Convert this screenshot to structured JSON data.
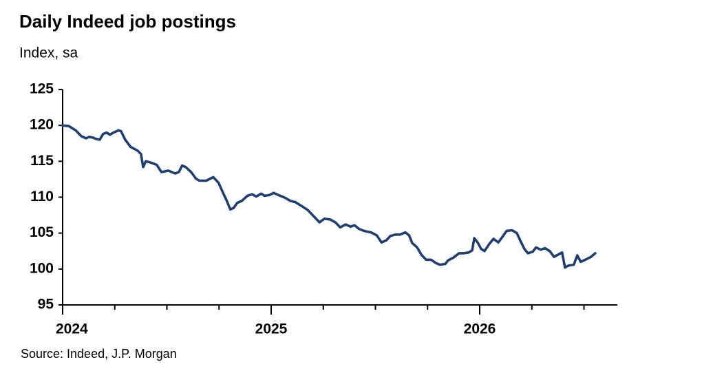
{
  "chart_data": {
    "type": "line",
    "title": "Daily Indeed job postings",
    "subtitle": "Index, sa",
    "source": "Source: Indeed, J.P. Morgan",
    "xlim": [
      2024,
      2026.66
    ],
    "xticks": [
      2024,
      2025,
      2026
    ],
    "xminorticks": [
      2024.25,
      2024.5,
      2024.75,
      2025.25,
      2025.5,
      2025.75,
      2026.25,
      2026.5
    ],
    "ylim": [
      95,
      125
    ],
    "yticks": [
      95,
      100,
      105,
      110,
      115,
      120,
      125
    ],
    "grid": false,
    "x": [
      2024.0,
      2024.03,
      2024.063,
      2024.089,
      2024.112,
      2024.128,
      2024.145,
      2024.161,
      2024.178,
      2024.194,
      2024.211,
      2024.227,
      2024.244,
      2024.267,
      2024.28,
      2024.3,
      2024.326,
      2024.359,
      2024.376,
      2024.386,
      2024.399,
      2024.425,
      2024.451,
      2024.474,
      2024.507,
      2024.54,
      2024.557,
      2024.573,
      2024.59,
      2024.616,
      2024.639,
      2024.656,
      2024.689,
      2024.722,
      2024.748,
      2024.771,
      2024.787,
      2024.804,
      2024.82,
      2024.837,
      2024.86,
      2024.886,
      2024.909,
      2024.929,
      2024.952,
      2024.969,
      2024.992,
      2025.012,
      2025.035,
      2025.068,
      2025.091,
      2025.117,
      2025.15,
      2025.176,
      2025.199,
      2025.232,
      2025.255,
      2025.282,
      2025.308,
      2025.331,
      2025.357,
      2025.381,
      2025.4,
      2025.42,
      2025.446,
      2025.479,
      2025.506,
      2025.529,
      2025.552,
      2025.572,
      2025.595,
      2025.618,
      2025.644,
      2025.661,
      2025.677,
      2025.7,
      2025.72,
      2025.743,
      2025.766,
      2025.792,
      2025.809,
      2025.835,
      2025.848,
      2025.875,
      2025.901,
      2025.924,
      2025.947,
      2025.964,
      2025.974,
      2025.99,
      2026.007,
      2026.023,
      2026.046,
      2026.066,
      2026.089,
      2026.112,
      2026.129,
      2026.155,
      2026.178,
      2026.194,
      2026.214,
      2026.231,
      2026.254,
      2026.27,
      2026.293,
      2026.313,
      2026.336,
      2026.356,
      2026.376,
      2026.395,
      2026.409,
      2026.428,
      2026.451,
      2026.468,
      2026.484,
      2026.507,
      2026.534,
      2026.554
    ],
    "series": [
      {
        "name": "Daily Indeed job postings",
        "color": "#1f3f73",
        "values": [
          120.0,
          119.9,
          119.3,
          118.5,
          118.2,
          118.4,
          118.3,
          118.1,
          118.0,
          118.8,
          119.0,
          118.7,
          119.0,
          119.3,
          119.2,
          118.0,
          117.0,
          116.5,
          116.0,
          114.2,
          115.0,
          114.8,
          114.5,
          113.5,
          113.7,
          113.3,
          113.5,
          114.4,
          114.2,
          113.5,
          112.6,
          112.3,
          112.3,
          112.8,
          112.0,
          110.5,
          109.5,
          108.3,
          108.5,
          109.2,
          109.5,
          110.2,
          110.4,
          110.1,
          110.5,
          110.2,
          110.3,
          110.6,
          110.3,
          109.9,
          109.5,
          109.3,
          108.7,
          108.2,
          107.5,
          106.5,
          107.0,
          106.9,
          106.5,
          105.8,
          106.2,
          105.9,
          106.1,
          105.6,
          105.3,
          105.1,
          104.7,
          103.7,
          104.0,
          104.6,
          104.8,
          104.8,
          105.1,
          104.7,
          103.6,
          103.0,
          102.0,
          101.3,
          101.3,
          100.8,
          100.6,
          100.7,
          101.2,
          101.6,
          102.2,
          102.2,
          102.3,
          102.6,
          104.3,
          103.7,
          102.8,
          102.5,
          103.5,
          104.2,
          103.7,
          104.6,
          105.3,
          105.4,
          105.0,
          104.0,
          102.8,
          102.2,
          102.4,
          103.0,
          102.7,
          102.9,
          102.5,
          101.7,
          102.0,
          102.3,
          100.2,
          100.5,
          100.6,
          101.9,
          101.0,
          101.3,
          101.7,
          102.2
        ]
      }
    ]
  }
}
